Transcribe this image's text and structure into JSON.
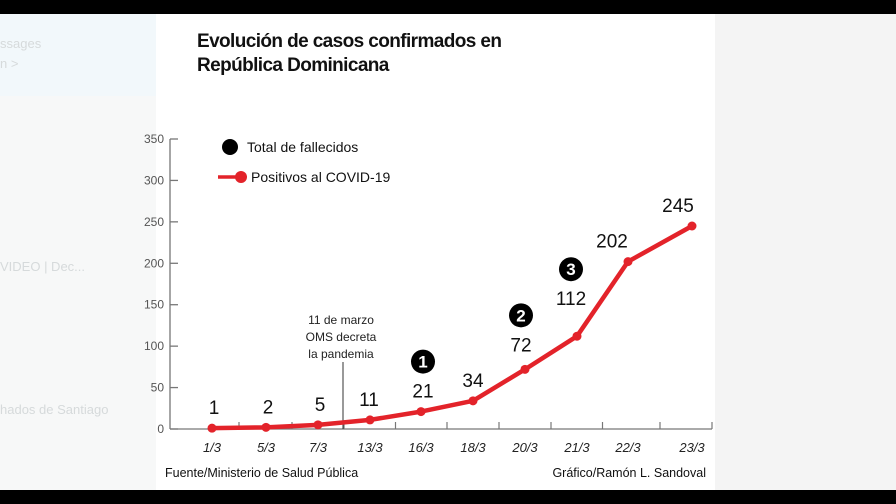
{
  "background": {
    "left_faint_texts": [
      "ssages",
      "n >",
      "VIDEO | Dec...",
      "hados de Santiago"
    ]
  },
  "title_lines": [
    "Evolución de casos confirmados en",
    "República Dominicana"
  ],
  "chart_data": {
    "type": "line",
    "title": "Evolución de casos confirmados en República Dominicana",
    "categories": [
      "1/3",
      "5/3",
      "7/3",
      "13/3",
      "16/3",
      "18/3",
      "20/3",
      "21/3",
      "22/3",
      "23/3"
    ],
    "series": [
      {
        "name": "Positivos al COVID-19",
        "values": [
          1,
          2,
          5,
          11,
          21,
          34,
          72,
          112,
          202,
          245
        ],
        "color": "#e3232a"
      }
    ],
    "deaths_markers": [
      {
        "category": "16/3",
        "label": "1"
      },
      {
        "category": "20/3",
        "label": "2"
      },
      {
        "category": "21/3",
        "label": "3"
      }
    ],
    "legend": [
      {
        "label": "Total de fallecidos",
        "symbol": "black-dot",
        "color": "#000000"
      },
      {
        "label": "Positivos al COVID-19",
        "symbol": "red-line-dot",
        "color": "#e3232a"
      }
    ],
    "legend_position": "top-left",
    "yticks": [
      0,
      50,
      100,
      150,
      200,
      250,
      300,
      350
    ],
    "ylim": [
      0,
      350
    ],
    "grid": false,
    "annotation": {
      "between": [
        "7/3",
        "13/3"
      ],
      "lines": [
        "11 de marzo",
        "OMS decreta",
        "la pandemia"
      ]
    },
    "source": "Fuente/Ministerio de Salud Pública",
    "credit": "Gráfico/Ramón L. Sandoval"
  }
}
